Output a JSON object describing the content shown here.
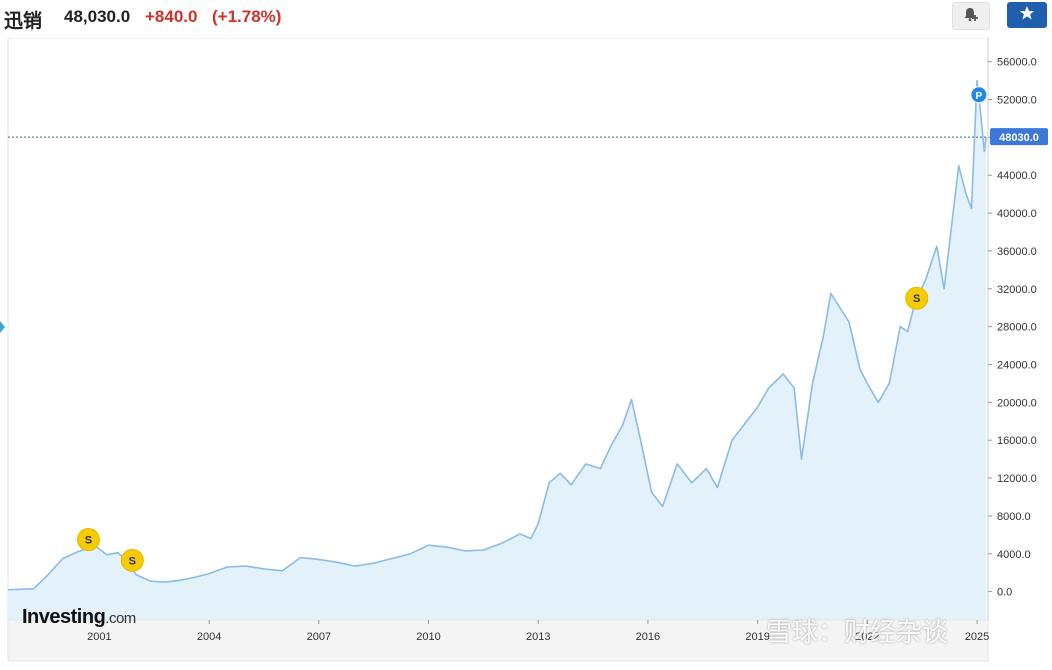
{
  "header": {
    "name": "迅销",
    "price": "48,030.0",
    "change": "+840.0",
    "change_pct": "(+1.78%)"
  },
  "toolbar": {
    "alert_icon": "bell-plus-icon",
    "star_icon": "star-icon"
  },
  "colors": {
    "line": "#8bbbe6",
    "area": "#e3f1fb",
    "up": "#d2302a",
    "star_button": "#1f5fae",
    "current_price_label": "#3c78d8",
    "event_marker": "#f5cc00"
  },
  "branding": {
    "logo_main": "Investing",
    "logo_suffix": ".com",
    "watermark": "雪球：财经杂谈"
  },
  "chart_data": {
    "type": "area",
    "x_tick_labels": [
      "2001",
      "2004",
      "2007",
      "2010",
      "2013",
      "2016",
      "2019",
      "2022",
      "2025"
    ],
    "y_tick_labels": [
      "56000.0",
      "52000.0",
      "48000.0",
      "44000.0",
      "40000.0",
      "36000.0",
      "32000.0",
      "28000.0",
      "24000.0",
      "20000.0",
      "16000.0",
      "12000.0",
      "8000.0",
      "4000.0",
      "0.0"
    ],
    "x_range": [
      1998.5,
      2025.3
    ],
    "ylim": [
      -3000,
      58500
    ],
    "current_price": 48030.0,
    "current_price_label": "48030.0",
    "series": [
      {
        "x": [
          1998.5,
          1999.2,
          1999.6,
          2000.0,
          2000.4,
          2000.7,
          2000.9,
          2001.2,
          2001.5,
          2001.8,
          2002.0,
          2002.4,
          2002.8,
          2003.2,
          2003.6,
          2004.0,
          2004.5,
          2005.0,
          2005.5,
          2006.0,
          2006.5,
          2007.0,
          2007.5,
          2008.0,
          2008.5,
          2009.0,
          2009.5,
          2010.0,
          2010.5,
          2011.0,
          2011.5,
          2012.0,
          2012.5,
          2012.8,
          2013.0,
          2013.3,
          2013.6,
          2013.9,
          2014.3,
          2014.7,
          2015.0,
          2015.3,
          2015.55,
          2015.8,
          2016.1,
          2016.4,
          2016.8,
          2017.2,
          2017.6,
          2017.9,
          2018.3,
          2018.6,
          2019.0,
          2019.3,
          2019.7,
          2020.0,
          2020.2,
          2020.5,
          2020.8,
          2021.0,
          2021.25,
          2021.5,
          2021.8,
          2022.0,
          2022.3,
          2022.6,
          2022.9,
          2023.1,
          2023.3,
          2023.6,
          2023.9,
          2024.1,
          2024.3,
          2024.5,
          2024.7,
          2024.85,
          2025.0,
          2025.1,
          2025.2,
          2025.25
        ],
        "y": [
          200,
          300,
          1800,
          3500,
          4200,
          4600,
          4800,
          3900,
          4100,
          3200,
          1800,
          1100,
          1000,
          1200,
          1500,
          1900,
          2600,
          2700,
          2400,
          2200,
          3600,
          3400,
          3100,
          2700,
          3000,
          3500,
          4000,
          4900,
          4700,
          4300,
          4400,
          5100,
          6100,
          5600,
          7200,
          11500,
          12500,
          11300,
          13500,
          13000,
          15500,
          17500,
          20300,
          16000,
          10500,
          9000,
          13500,
          11500,
          13000,
          11000,
          16000,
          17500,
          19500,
          21500,
          23000,
          21500,
          14000,
          22000,
          27000,
          31500,
          30000,
          28500,
          23500,
          22000,
          20000,
          22000,
          28000,
          27500,
          30500,
          33000,
          36500,
          32000,
          38500,
          45000,
          42000,
          40500,
          54000,
          50500,
          46500,
          48030
        ]
      }
    ],
    "events": [
      {
        "label": "S",
        "x": 2000.7,
        "y": 5500
      },
      {
        "label": "S",
        "x": 2001.9,
        "y": 3300
      },
      {
        "label": "S",
        "x": 2023.35,
        "y": 31000
      },
      {
        "label": "P",
        "x": 2025.05,
        "y": 52500
      }
    ]
  }
}
